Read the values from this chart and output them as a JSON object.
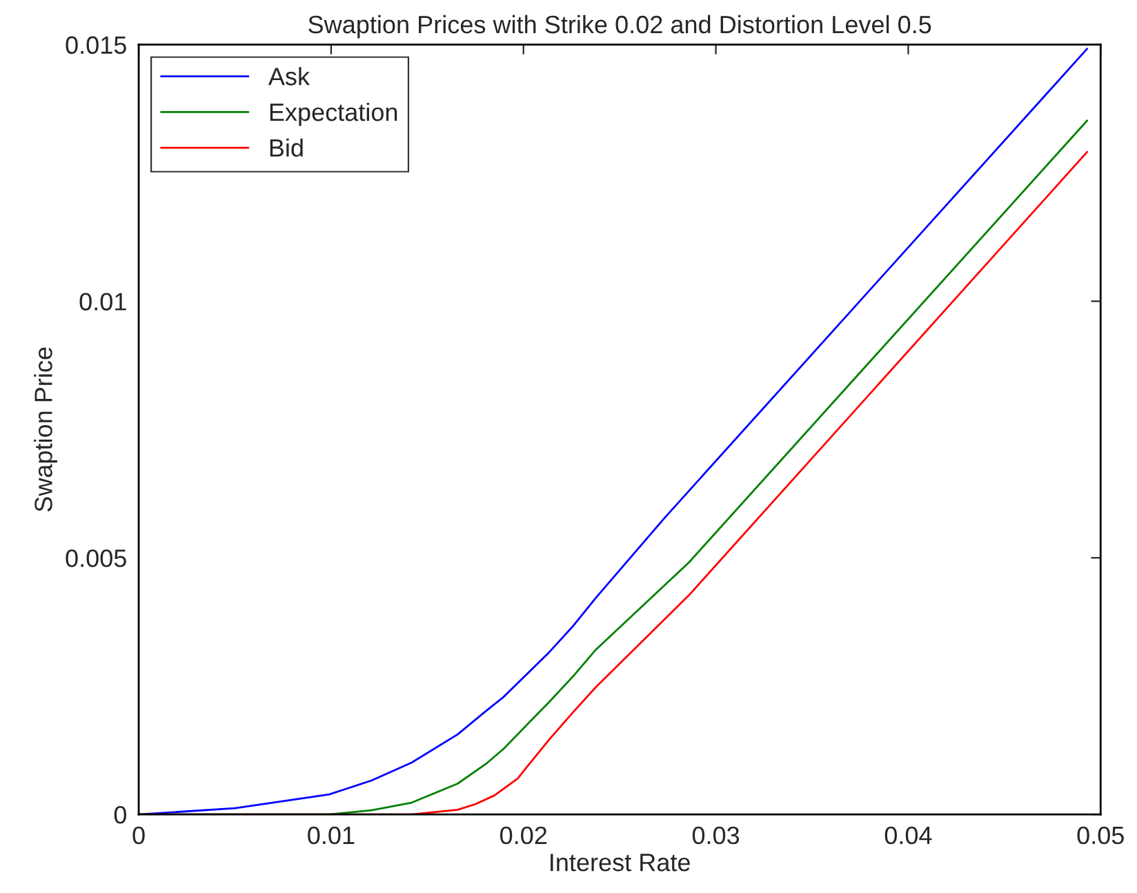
{
  "chart_data": {
    "type": "line",
    "title": "Swaption Prices with Strike 0.02 and Distortion Level 0.5",
    "xlabel": "Interest Rate",
    "ylabel": "Swaption Price",
    "series": [
      {
        "name": "Ask",
        "color": "#0000ff",
        "x": [
          0,
          0.005,
          0.0099,
          0.0121,
          0.01419,
          0.01658,
          0.0181,
          0.01897,
          0.02136,
          0.0226,
          0.02376,
          0.02734,
          0.0493
        ],
        "values": [
          0,
          0.00012,
          0.00039,
          0.00066,
          0.00101,
          0.00156,
          0.00203,
          0.00229,
          0.00317,
          0.00368,
          0.00422,
          0.00578,
          0.01492
        ]
      },
      {
        "name": "Expectation",
        "color": "#008000",
        "x": [
          0,
          0.0099,
          0.0121,
          0.01419,
          0.01658,
          0.0181,
          0.01897,
          0.02136,
          0.0226,
          0.02376,
          0.0286,
          0.0493
        ],
        "values": [
          0,
          0,
          8e-05,
          0.00023,
          0.0006,
          0.001,
          0.00128,
          0.0022,
          0.0027,
          0.00321,
          0.00491,
          0.01352
        ]
      },
      {
        "name": "Bid",
        "color": "#ff0000",
        "x": [
          0,
          0.01419,
          0.01658,
          0.0175,
          0.01849,
          0.0197,
          0.02017,
          0.02136,
          0.0226,
          0.02376,
          0.0286,
          0.0493
        ],
        "values": [
          0,
          0,
          9e-05,
          0.0002,
          0.00037,
          0.0007,
          0.00092,
          0.00147,
          0.002,
          0.00248,
          0.00427,
          0.01291
        ]
      }
    ],
    "xlim": [
      0,
      0.05
    ],
    "xticks": [
      0,
      0.01,
      0.02,
      0.03,
      0.04,
      0.05
    ],
    "ylim": [
      0,
      0.015
    ],
    "yticks": [
      0,
      0.005,
      0.01,
      0.015
    ],
    "grid": false,
    "legend": "top left",
    "marker": "none",
    "line_style": "solid"
  }
}
